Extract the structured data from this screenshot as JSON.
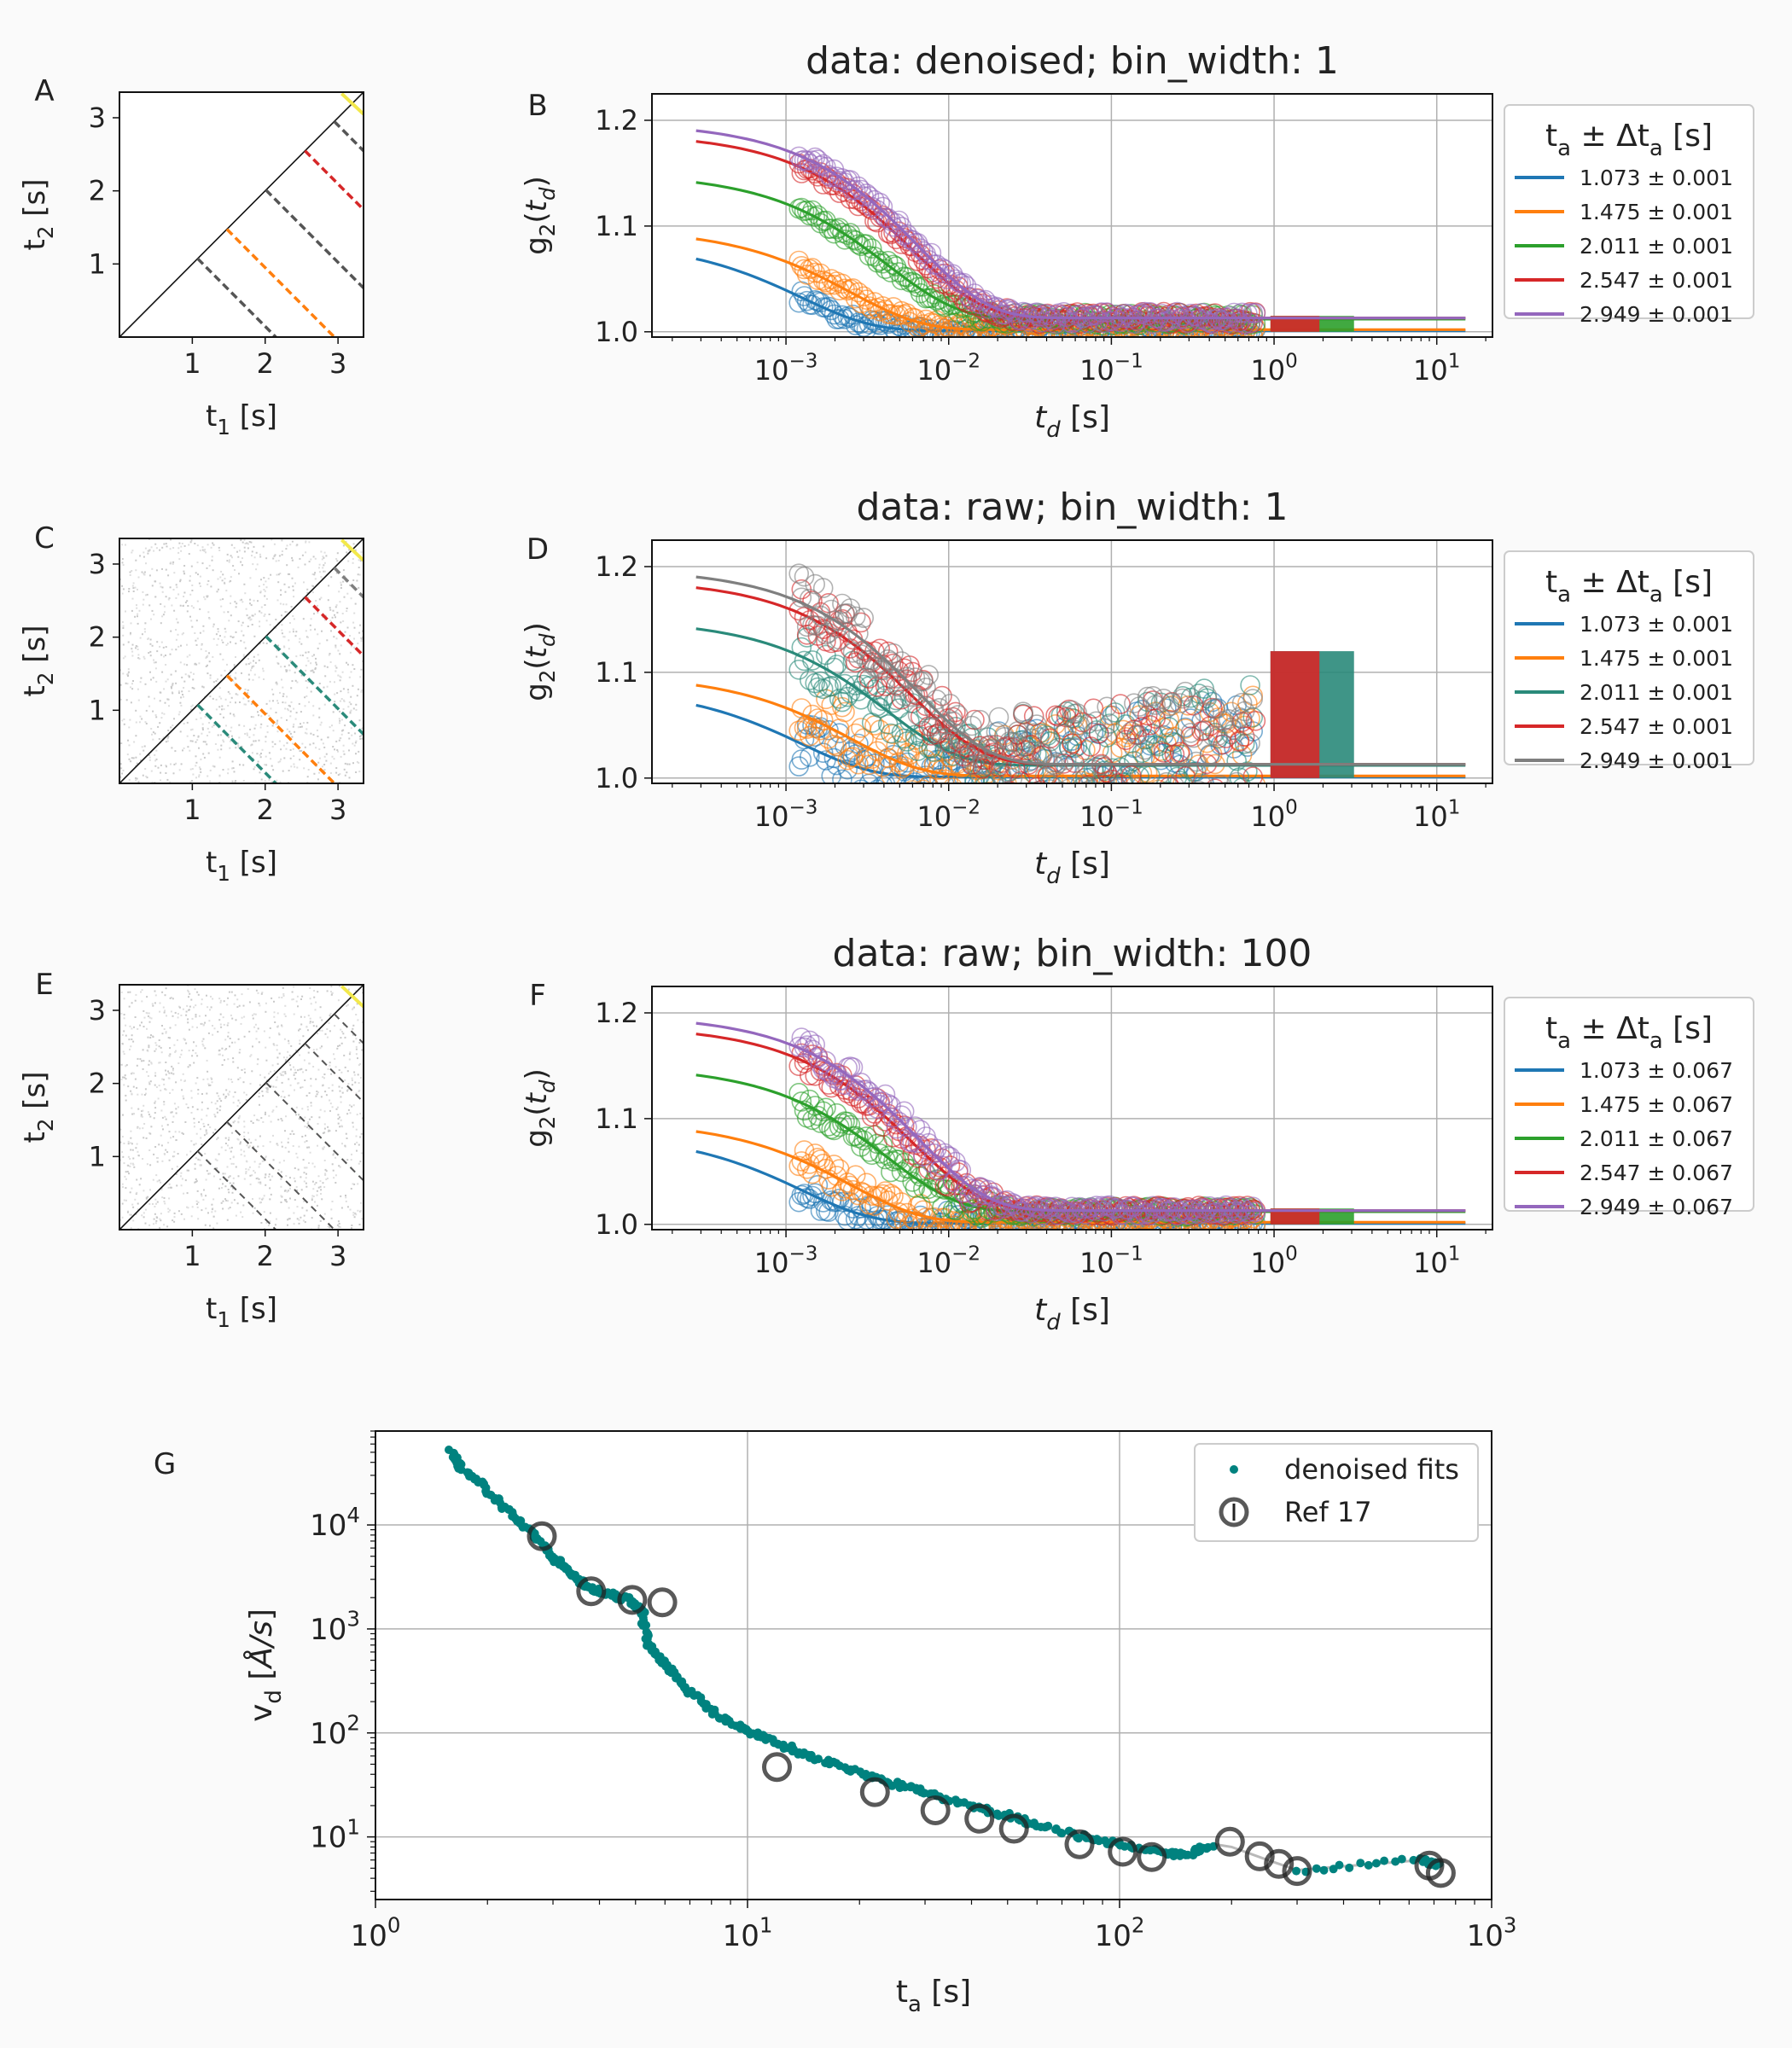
{
  "colors": {
    "blue": "#1f77b4",
    "orange": "#ff7f0e",
    "green": "#2ca02c",
    "red": "#d62728",
    "purple": "#9467bd",
    "gray": "#7f7f7f",
    "teal": "#00827f"
  },
  "chart_data": [
    {
      "panel": "A",
      "type": "heatmap",
      "xlabel": "t₁ [s]",
      "ylabel": "t₂ [s]",
      "xlim": [
        0,
        3.35
      ],
      "ylim": [
        0,
        3.35
      ],
      "ticks": [
        "1",
        "2",
        "3"
      ],
      "background": "white",
      "lines": [
        {
          "ta": 1.073,
          "color": "#555555",
          "width": "thin"
        },
        {
          "ta": 1.475,
          "color": "#ff7f0e",
          "width": "thin"
        },
        {
          "ta": 2.011,
          "color": "#555555",
          "width": "thin"
        },
        {
          "ta": 2.547,
          "color": "#d62728",
          "width": "thin"
        },
        {
          "ta": 2.949,
          "color": "#555555",
          "width": "thin"
        }
      ]
    },
    {
      "panel": "B",
      "type": "scatter",
      "title": "data: denoised; bin_width: 1",
      "xlabel": "t_d [s]",
      "ylabel": "g₂(t_d)",
      "xscale": "log",
      "xlim": [
        0.00015,
        22
      ],
      "ylim": [
        0.995,
        1.225
      ],
      "yticks": [
        "1.0",
        "1.1",
        "1.2"
      ],
      "legend": {
        "title": "tₐ ± Δtₐ [s]",
        "position": "outside-right"
      },
      "series": [
        {
          "name": "1.073 ± 0.001",
          "color": "#1f77b4",
          "beta": 0.085,
          "tau": 0.0025,
          "plateau": 1.001
        },
        {
          "name": "1.475 ± 0.001",
          "color": "#ff7f0e",
          "beta": 0.096,
          "tau": 0.005,
          "plateau": 1.002
        },
        {
          "name": "2.011 ± 0.001",
          "color": "#2ca02c",
          "beta": 0.138,
          "tau": 0.0085,
          "plateau": 1.012
        },
        {
          "name": "2.547 ± 0.001",
          "color": "#d62728",
          "beta": 0.175,
          "tau": 0.012,
          "plateau": 1.013
        },
        {
          "name": "2.949 ± 0.001",
          "color": "#9467bd",
          "beta": 0.185,
          "tau": 0.013,
          "plateau": 1.013
        }
      ]
    },
    {
      "panel": "C",
      "type": "heatmap",
      "xlabel": "t₁ [s]",
      "ylabel": "t₂ [s]",
      "xlim": [
        0,
        3.35
      ],
      "ylim": [
        0,
        3.35
      ],
      "ticks": [
        "1",
        "2",
        "3"
      ],
      "background": "noise",
      "lines": [
        {
          "ta": 1.073,
          "color": "#2a8a7a",
          "width": "thin"
        },
        {
          "ta": 1.475,
          "color": "#ff7f0e",
          "width": "thin"
        },
        {
          "ta": 2.011,
          "color": "#2a8a7a",
          "width": "thin"
        },
        {
          "ta": 2.547,
          "color": "#d62728",
          "width": "thin"
        },
        {
          "ta": 2.949,
          "color": "#7f7f7f",
          "width": "thin"
        }
      ]
    },
    {
      "panel": "D",
      "type": "scatter",
      "title": "data: raw; bin_width: 1",
      "xlabel": "t_d [s]",
      "ylabel": "g₂(t_d)",
      "xscale": "log",
      "xlim": [
        0.00015,
        22
      ],
      "ylim": [
        0.995,
        1.225
      ],
      "yticks": [
        "1.0",
        "1.1",
        "1.2"
      ],
      "legend": {
        "title": "tₐ ± Δtₐ [s]",
        "position": "outside-right"
      },
      "series": [
        {
          "name": "1.073 ± 0.001",
          "color": "#1f77b4",
          "beta": 0.085,
          "tau": 0.0025,
          "plateau": 1.001
        },
        {
          "name": "1.475 ± 0.001",
          "color": "#ff7f0e",
          "beta": 0.096,
          "tau": 0.005,
          "plateau": 1.002
        },
        {
          "name": "2.011 ± 0.001",
          "color": "#2a8a7a",
          "beta": 0.138,
          "tau": 0.0085,
          "plateau": 1.012
        },
        {
          "name": "2.547 ± 0.001",
          "color": "#d62728",
          "beta": 0.175,
          "tau": 0.012,
          "plateau": 1.013
        },
        {
          "name": "2.949 ± 0.001",
          "color": "#7f7f7f",
          "beta": 0.185,
          "tau": 0.013,
          "plateau": 1.013
        }
      ]
    },
    {
      "panel": "E",
      "type": "heatmap",
      "xlabel": "t₁ [s]",
      "ylabel": "t₂ [s]",
      "xlim": [
        0,
        3.35
      ],
      "ylim": [
        0,
        3.35
      ],
      "ticks": [
        "1",
        "2",
        "3"
      ],
      "background": "noise",
      "lines": [
        {
          "ta": 1.073,
          "color": "#1f77b4",
          "width": "band"
        },
        {
          "ta": 1.475,
          "color": "#ff7f0e",
          "width": "band"
        },
        {
          "ta": 2.011,
          "color": "#2ca02c",
          "width": "band"
        },
        {
          "ta": 2.547,
          "color": "#d62728",
          "width": "band"
        },
        {
          "ta": 2.949,
          "color": "#9467bd",
          "width": "band"
        }
      ]
    },
    {
      "panel": "F",
      "type": "scatter",
      "title": "data: raw; bin_width: 100",
      "xlabel": "t_d [s]",
      "ylabel": "g₂(t_d)",
      "xscale": "log",
      "xlim": [
        0.00015,
        22
      ],
      "ylim": [
        0.995,
        1.225
      ],
      "yticks": [
        "1.0",
        "1.1",
        "1.2"
      ],
      "legend": {
        "title": "tₐ ± Δtₐ [s]",
        "position": "outside-right"
      },
      "series": [
        {
          "name": "1.073 ± 0.067",
          "color": "#1f77b4",
          "beta": 0.085,
          "tau": 0.0025,
          "plateau": 1.001
        },
        {
          "name": "1.475 ± 0.067",
          "color": "#ff7f0e",
          "beta": 0.096,
          "tau": 0.005,
          "plateau": 1.002
        },
        {
          "name": "2.011 ± 0.067",
          "color": "#2ca02c",
          "beta": 0.138,
          "tau": 0.0085,
          "plateau": 1.012
        },
        {
          "name": "2.547 ± 0.067",
          "color": "#d62728",
          "beta": 0.175,
          "tau": 0.012,
          "plateau": 1.013
        },
        {
          "name": "2.949 ± 0.067",
          "color": "#9467bd",
          "beta": 0.185,
          "tau": 0.013,
          "plateau": 1.013
        }
      ]
    },
    {
      "panel": "G",
      "type": "scatter",
      "xlabel": "tₐ [s]",
      "ylabel": "v_d [Å/s]",
      "xscale": "log",
      "yscale": "log",
      "xlim": [
        1,
        1000
      ],
      "ylim": [
        2.5,
        80000
      ],
      "xticks": [
        "10⁰",
        "10¹",
        "10²",
        "10³"
      ],
      "yticks": [
        "10¹",
        "10²",
        "10³",
        "10⁴"
      ],
      "legend": {
        "position": "upper right"
      },
      "series": [
        {
          "name": "denoised fits",
          "color": "#00827f",
          "marker": "dot",
          "points": [
            [
              1.6,
              50000
            ],
            [
              1.7,
              35000
            ],
            [
              2.0,
              22000
            ],
            [
              2.3,
              13000
            ],
            [
              2.6,
              8500
            ],
            [
              3.0,
              5000
            ],
            [
              3.3,
              3500
            ],
            [
              3.7,
              2600
            ],
            [
              4.2,
              2200
            ],
            [
              4.8,
              1900
            ],
            [
              5.2,
              1500
            ],
            [
              5.4,
              700
            ],
            [
              6.0,
              450
            ],
            [
              7.0,
              250
            ],
            [
              8.5,
              140
            ],
            [
              10,
              105
            ],
            [
              12,
              80
            ],
            [
              15,
              58
            ],
            [
              20,
              42
            ],
            [
              25,
              32
            ],
            [
              30,
              27
            ],
            [
              40,
              20
            ],
            [
              50,
              16
            ],
            [
              60,
              13
            ],
            [
              80,
              10
            ],
            [
              100,
              8.5
            ],
            [
              130,
              7
            ],
            [
              150,
              6.6
            ],
            [
              180,
              8.5
            ],
            [
              200,
              8
            ],
            [
              250,
              6
            ],
            [
              300,
              4.8
            ],
            [
              650,
              6
            ],
            [
              720,
              5.2
            ]
          ]
        },
        {
          "name": "Ref 17",
          "color": "#222222",
          "marker": "ring",
          "points": [
            [
              2.8,
              7800
            ],
            [
              3.8,
              2300
            ],
            [
              4.9,
              1900
            ],
            [
              5.9,
              1800
            ],
            [
              12,
              47
            ],
            [
              22,
              27
            ],
            [
              32,
              18
            ],
            [
              42,
              15
            ],
            [
              52,
              12
            ],
            [
              78,
              8.5
            ],
            [
              102,
              7.2
            ],
            [
              122,
              6.4
            ],
            [
              198,
              9
            ],
            [
              238,
              6.5
            ],
            [
              268,
              5.5
            ],
            [
              300,
              4.7
            ],
            [
              680,
              5.3
            ],
            [
              730,
              4.5
            ]
          ]
        }
      ]
    }
  ]
}
